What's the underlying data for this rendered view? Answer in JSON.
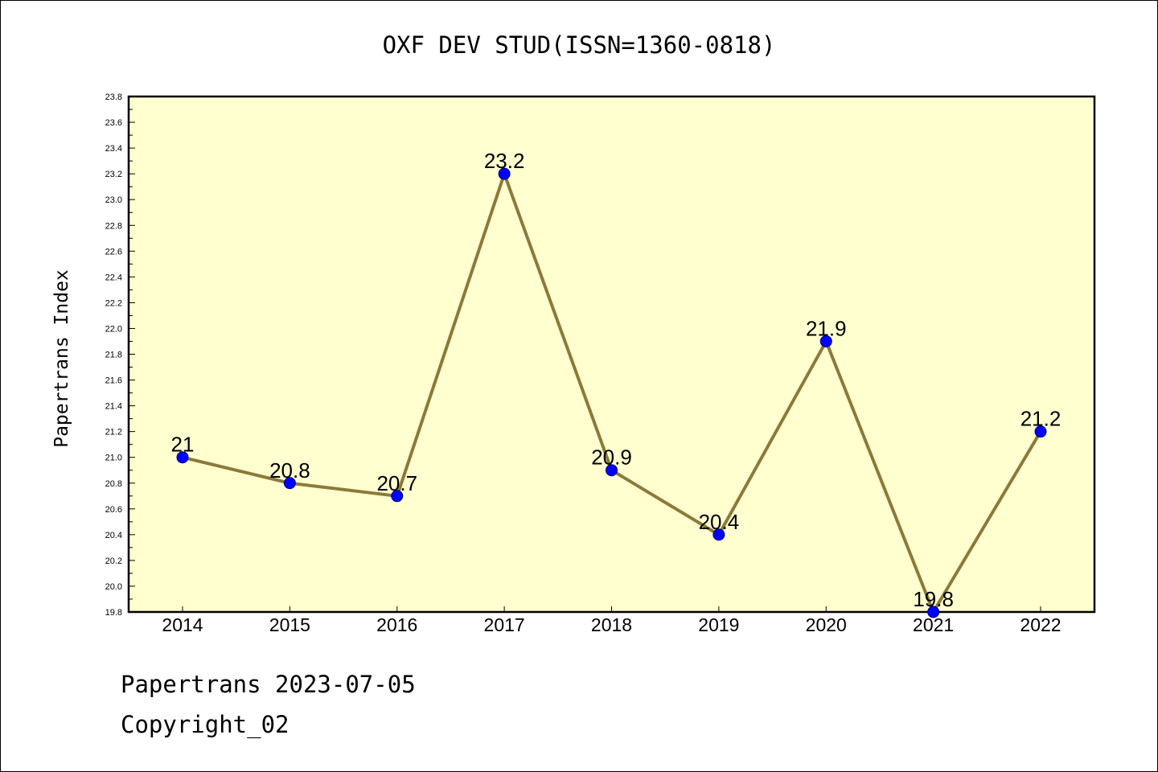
{
  "chart_data": {
    "type": "line",
    "title": "OXF DEV STUD(ISSN=1360-0818)",
    "xlabel": "",
    "ylabel": "Papertrans Index",
    "categories": [
      "2014",
      "2015",
      "2016",
      "2017",
      "2018",
      "2019",
      "2020",
      "2021",
      "2022"
    ],
    "series": [
      {
        "values": [
          21.0,
          20.8,
          20.7,
          23.2,
          20.9,
          20.4,
          21.9,
          19.8,
          21.2
        ],
        "labels": [
          "21",
          "20.8",
          "20.7",
          "23.2",
          "20.9",
          "20.4",
          "21.9",
          "19.8",
          "21.2"
        ]
      }
    ],
    "ylim": [
      19.8,
      23.8
    ],
    "yticks": [
      "19.8",
      "20.0",
      "20.2",
      "20.4",
      "20.6",
      "20.8",
      "21.0",
      "21.2",
      "21.4",
      "21.6",
      "21.8",
      "22.0",
      "22.2",
      "22.4",
      "22.6",
      "22.8",
      "23.0",
      "23.2",
      "23.4",
      "23.6",
      "23.8"
    ],
    "grid": false,
    "colors": {
      "plot_background": "#ffffd0",
      "line": "#8c7a3a",
      "marker": "#0000ff"
    }
  },
  "footer": {
    "date_line": "Papertrans 2023-07-05",
    "copyright": "Copyright_02"
  }
}
